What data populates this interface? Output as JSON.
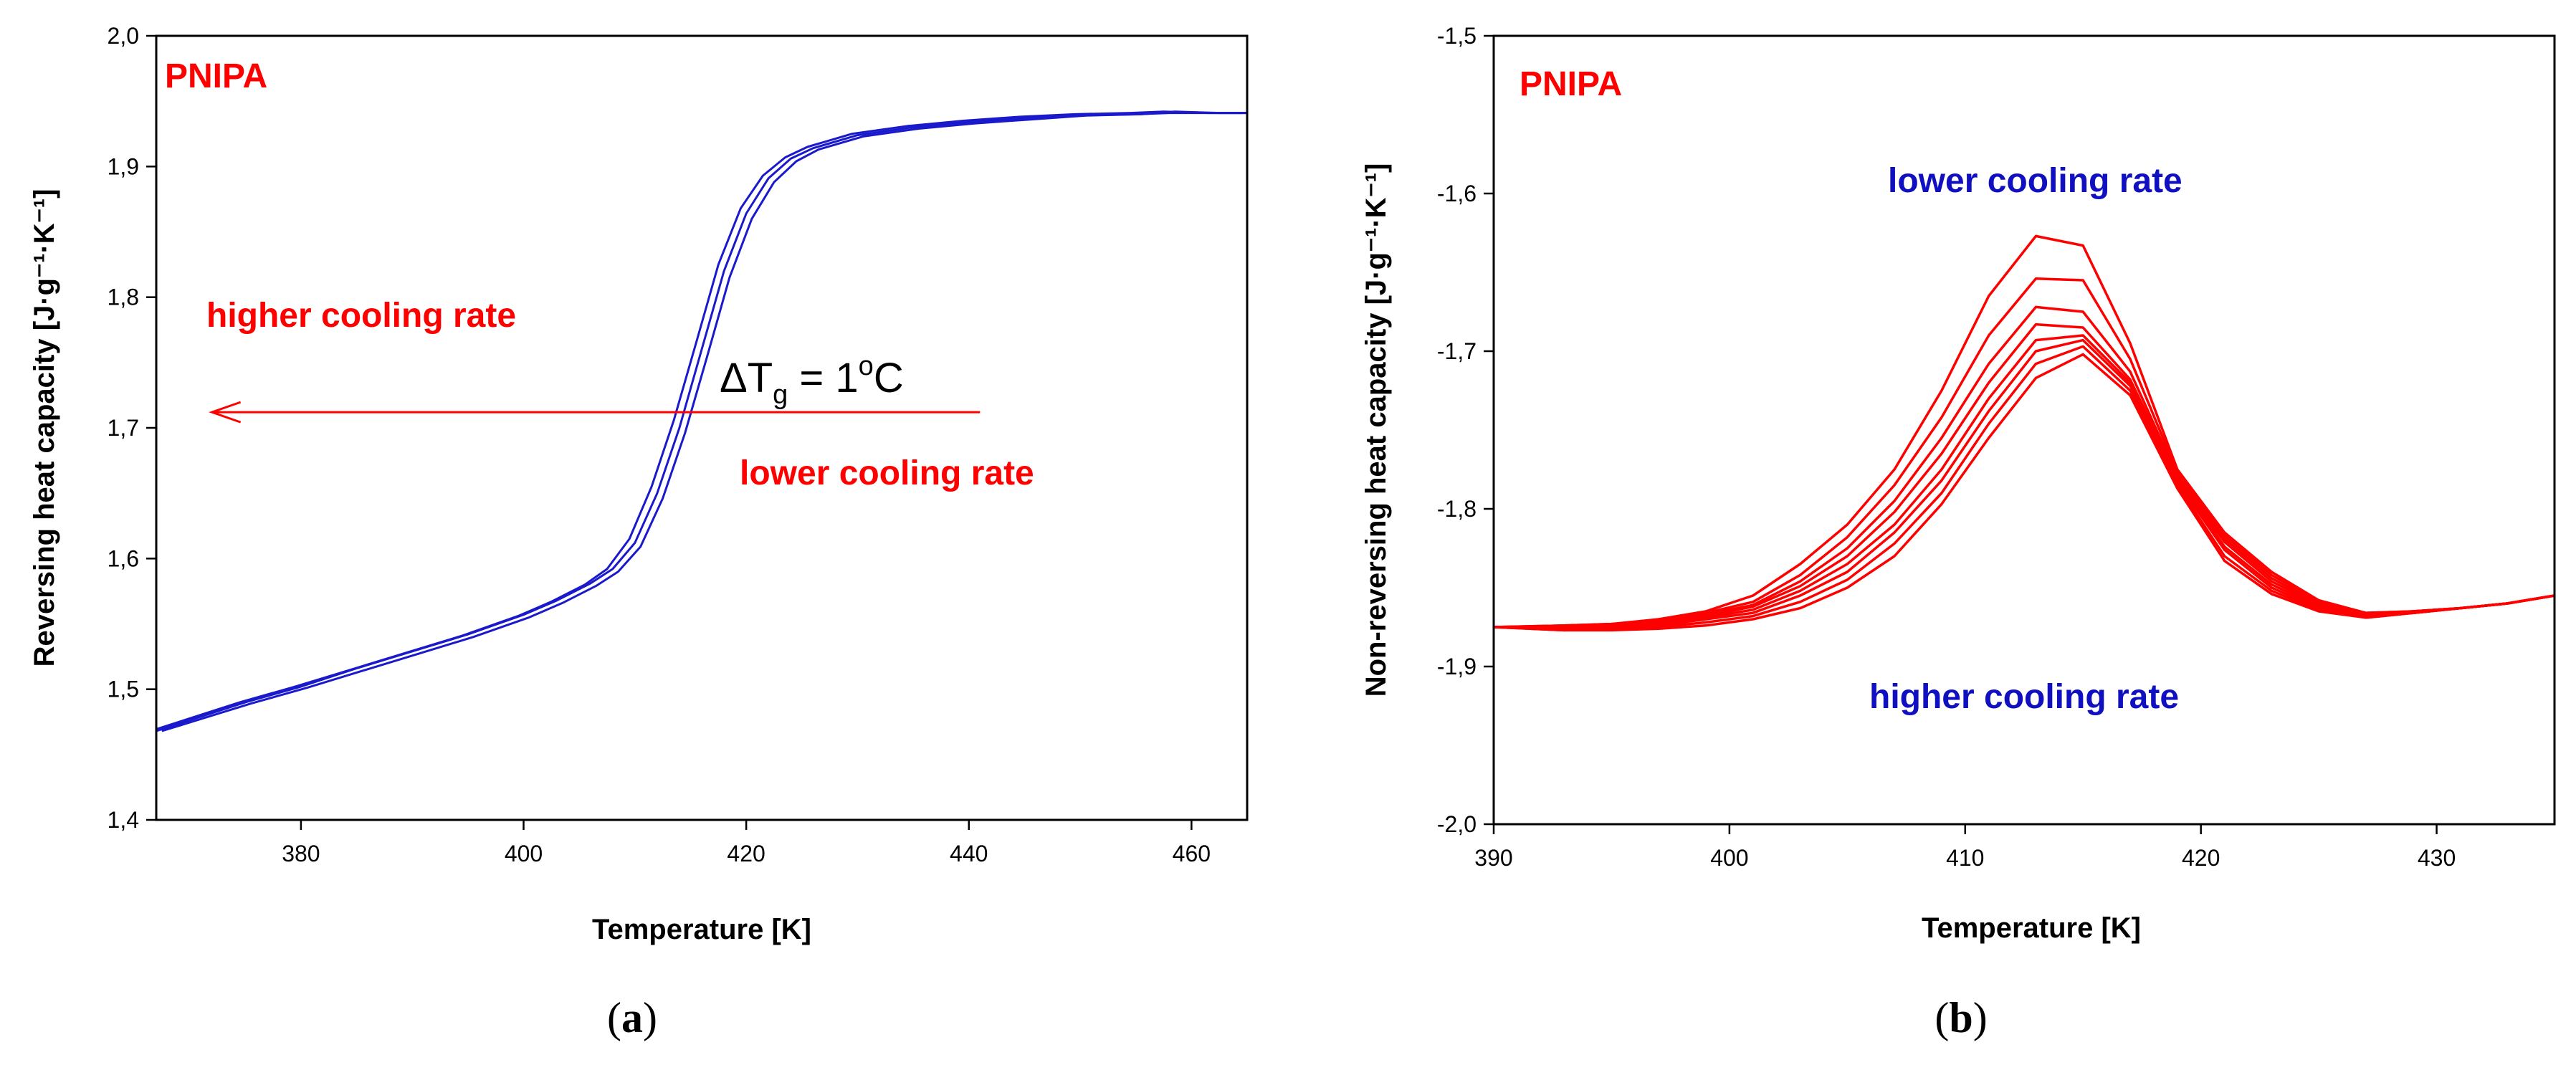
{
  "colors": {
    "blue": "#1a1acc",
    "red": "#ff0000",
    "blue_text": "#1010c0",
    "axis": "#000000"
  },
  "chart_data": [
    {
      "type": "line",
      "panel_caption_open": "(",
      "panel_caption_letter": "a",
      "panel_caption_close": ")",
      "sample_label": "PNIPA",
      "xlabel": "Temperature [K]",
      "ylabel": "Reversing heat capacity [J·g⁻¹·K⁻¹]",
      "xlim": [
        367,
        465
      ],
      "ylim": [
        1.4,
        2.0
      ],
      "xticks": [
        380,
        400,
        420,
        440,
        460
      ],
      "yticks": [
        1.4,
        1.5,
        1.6,
        1.7,
        1.8,
        1.9,
        2.0
      ],
      "ytick_labels": [
        "1,4",
        "1,5",
        "1,6",
        "1,7",
        "1,8",
        "1,9",
        "2,0"
      ],
      "annotations": {
        "higher": "higher cooling rate",
        "lower": "lower cooling rate",
        "delta_prefix": "ΔT",
        "delta_sub": "g",
        "delta_mid": " = 1",
        "delta_sup": "o",
        "delta_unit": "C"
      },
      "arrow": {
        "from_x": 441,
        "to_x": 372,
        "y": 1.712
      },
      "series": [
        {
          "name": "curve-1",
          "shift": -0.5,
          "x": [
            367,
            375,
            380,
            385,
            390,
            395,
            400,
            403,
            406,
            408,
            410,
            412,
            414,
            416,
            418,
            420,
            422,
            424,
            426,
            430,
            435,
            440,
            445,
            450,
            455,
            458,
            462,
            465
          ],
          "y": [
            1.468,
            1.49,
            1.502,
            1.515,
            1.528,
            1.541,
            1.556,
            1.567,
            1.58,
            1.592,
            1.615,
            1.655,
            1.706,
            1.765,
            1.825,
            1.868,
            1.893,
            1.907,
            1.915,
            1.925,
            1.931,
            1.935,
            1.938,
            1.94,
            1.941,
            1.942,
            1.941,
            1.941
          ]
        },
        {
          "name": "curve-2",
          "shift": 0.0,
          "x": [
            367,
            375,
            380,
            385,
            390,
            395,
            400,
            403,
            406,
            408,
            410,
            412,
            414,
            416,
            418,
            420,
            422,
            424,
            426,
            430,
            435,
            440,
            445,
            450,
            455,
            458,
            462,
            465
          ],
          "y": [
            1.468,
            1.49,
            1.502,
            1.516,
            1.529,
            1.542,
            1.557,
            1.568,
            1.581,
            1.592,
            1.612,
            1.65,
            1.7,
            1.76,
            1.82,
            1.864,
            1.891,
            1.906,
            1.914,
            1.924,
            1.93,
            1.934,
            1.937,
            1.939,
            1.94,
            1.941,
            1.941,
            1.941
          ]
        },
        {
          "name": "curve-3",
          "shift": 0.5,
          "x": [
            367,
            375,
            380,
            385,
            390,
            395,
            400,
            403,
            406,
            408,
            410,
            412,
            414,
            416,
            418,
            420,
            422,
            424,
            426,
            430,
            435,
            440,
            445,
            450,
            455,
            458,
            462,
            465
          ],
          "y": [
            1.468,
            1.489,
            1.501,
            1.514,
            1.527,
            1.54,
            1.555,
            1.566,
            1.579,
            1.59,
            1.609,
            1.646,
            1.696,
            1.755,
            1.815,
            1.86,
            1.888,
            1.904,
            1.913,
            1.923,
            1.929,
            1.933,
            1.936,
            1.939,
            1.94,
            1.942,
            1.941,
            1.941
          ]
        }
      ]
    },
    {
      "type": "line",
      "panel_caption_open": "(",
      "panel_caption_letter": "b",
      "panel_caption_close": ")",
      "sample_label": "PNIPA",
      "xlabel": "Temperature [K]",
      "ylabel": "Non-reversing heat capacity [J·g⁻¹·K⁻¹]",
      "xlim": [
        390,
        435
      ],
      "ylim": [
        -2.0,
        -1.5
      ],
      "xticks": [
        390,
        400,
        410,
        420,
        430
      ],
      "yticks": [
        -2.0,
        -1.9,
        -1.8,
        -1.7,
        -1.6,
        -1.5
      ],
      "ytick_labels": [
        "-2,0",
        "-1,9",
        "-1,8",
        "-1,7",
        "-1,6",
        "-1,5"
      ],
      "annotations": {
        "lower": "lower cooling rate",
        "higher": "higher cooling rate"
      },
      "x": [
        390,
        393,
        395,
        397,
        399,
        401,
        403,
        405,
        407,
        409,
        411,
        413,
        415,
        417,
        419,
        421,
        423,
        425,
        427,
        429,
        431,
        433,
        435
      ],
      "series": [
        {
          "name": "run-1",
          "y": [
            -1.875,
            -1.874,
            -1.873,
            -1.87,
            -1.865,
            -1.855,
            -1.835,
            -1.81,
            -1.775,
            -1.725,
            -1.665,
            -1.627,
            -1.633,
            -1.695,
            -1.775,
            -1.815,
            -1.84,
            -1.858,
            -1.866,
            -1.865,
            -1.863,
            -1.86,
            -1.855
          ]
        },
        {
          "name": "run-2",
          "y": [
            -1.875,
            -1.874,
            -1.873,
            -1.871,
            -1.866,
            -1.859,
            -1.842,
            -1.818,
            -1.785,
            -1.742,
            -1.69,
            -1.654,
            -1.655,
            -1.705,
            -1.777,
            -1.817,
            -1.842,
            -1.859,
            -1.866,
            -1.865,
            -1.863,
            -1.86,
            -1.855
          ]
        },
        {
          "name": "run-3",
          "y": [
            -1.875,
            -1.875,
            -1.874,
            -1.872,
            -1.867,
            -1.861,
            -1.846,
            -1.825,
            -1.795,
            -1.755,
            -1.708,
            -1.672,
            -1.675,
            -1.713,
            -1.779,
            -1.819,
            -1.844,
            -1.86,
            -1.867,
            -1.865,
            -1.863,
            -1.86,
            -1.855
          ]
        },
        {
          "name": "run-4",
          "y": [
            -1.875,
            -1.875,
            -1.874,
            -1.872,
            -1.868,
            -1.862,
            -1.849,
            -1.83,
            -1.802,
            -1.765,
            -1.72,
            -1.683,
            -1.685,
            -1.718,
            -1.78,
            -1.821,
            -1.846,
            -1.861,
            -1.867,
            -1.865,
            -1.863,
            -1.86,
            -1.855
          ]
        },
        {
          "name": "run-5",
          "y": [
            -1.875,
            -1.875,
            -1.874,
            -1.873,
            -1.869,
            -1.864,
            -1.852,
            -1.835,
            -1.81,
            -1.775,
            -1.73,
            -1.693,
            -1.69,
            -1.72,
            -1.781,
            -1.824,
            -1.848,
            -1.862,
            -1.868,
            -1.866,
            -1.863,
            -1.86,
            -1.855
          ]
        },
        {
          "name": "run-6",
          "y": [
            -1.875,
            -1.876,
            -1.875,
            -1.874,
            -1.87,
            -1.866,
            -1.855,
            -1.84,
            -1.815,
            -1.782,
            -1.738,
            -1.7,
            -1.693,
            -1.722,
            -1.783,
            -1.826,
            -1.85,
            -1.863,
            -1.868,
            -1.866,
            -1.863,
            -1.86,
            -1.855
          ]
        },
        {
          "name": "run-7",
          "y": [
            -1.875,
            -1.877,
            -1.876,
            -1.875,
            -1.872,
            -1.868,
            -1.859,
            -1.845,
            -1.822,
            -1.79,
            -1.746,
            -1.708,
            -1.697,
            -1.725,
            -1.785,
            -1.83,
            -1.852,
            -1.864,
            -1.869,
            -1.866,
            -1.863,
            -1.86,
            -1.855
          ]
        },
        {
          "name": "run-8",
          "y": [
            -1.875,
            -1.877,
            -1.877,
            -1.876,
            -1.874,
            -1.87,
            -1.863,
            -1.85,
            -1.83,
            -1.797,
            -1.755,
            -1.717,
            -1.702,
            -1.728,
            -1.787,
            -1.833,
            -1.854,
            -1.865,
            -1.869,
            -1.866,
            -1.863,
            -1.86,
            -1.855
          ]
        }
      ]
    }
  ]
}
